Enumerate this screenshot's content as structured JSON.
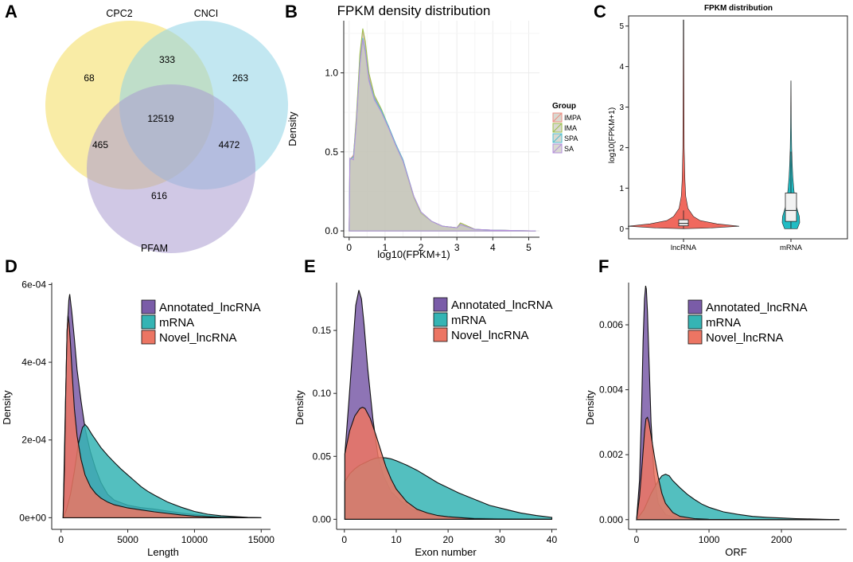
{
  "colors": {
    "yellow": "#f5df6b",
    "cyan": "#8fd3e6",
    "lavender": "#a99ad0",
    "purple": "#7a5ca8",
    "teal": "#35b4b4",
    "salmon": "#ec7563",
    "violin_red": "#f0695e",
    "violin_teal": "#22bcc4",
    "grid": "#ececec"
  },
  "chart_data": [
    {
      "panel": "A",
      "type": "venn",
      "sets": [
        "CPC2",
        "CNCI",
        "PFAM"
      ],
      "regions": [
        {
          "region": "CPC2 only",
          "value": "68"
        },
        {
          "region": "CPC2 & CNCI",
          "value": "333"
        },
        {
          "region": "CNCI only",
          "value": "263"
        },
        {
          "region": "all three",
          "value": "12519"
        },
        {
          "region": "CPC2 & PFAM",
          "value": "465"
        },
        {
          "region": "CNCI & PFAM",
          "value": "4472"
        },
        {
          "region": "PFAM only",
          "value": "616"
        }
      ]
    },
    {
      "panel": "B",
      "type": "area",
      "title": "FPKM density distribution",
      "xlabel": "log10(FPKM+1)",
      "ylabel": "Density",
      "xlim": [
        -0.15,
        5.3
      ],
      "ylim": [
        -0.04,
        1.33
      ],
      "xticks": [
        0,
        1,
        2,
        3,
        4,
        5
      ],
      "yticks": [
        0.0,
        0.5,
        1.0
      ],
      "ytick_labels": [
        "0.0",
        "0.5",
        "1.0"
      ],
      "legend_title": "Group",
      "series": [
        {
          "name": "IMPA",
          "color": "#ee8b80",
          "x": [
            0,
            0.02,
            0.12,
            0.2,
            0.3,
            0.38,
            0.45,
            0.55,
            0.7,
            0.9,
            1.1,
            1.3,
            1.5,
            1.8,
            2.0,
            2.3,
            2.6,
            3.0,
            3.1,
            3.5,
            4.0,
            5.2
          ],
          "y": [
            0,
            0.45,
            0.48,
            0.7,
            1.1,
            1.27,
            1.18,
            0.98,
            0.85,
            0.76,
            0.66,
            0.55,
            0.45,
            0.22,
            0.12,
            0.06,
            0.03,
            0.02,
            0.05,
            0.01,
            0.005,
            0
          ]
        },
        {
          "name": "IMA",
          "color": "#9cbf4a",
          "x": [
            0,
            0.02,
            0.12,
            0.2,
            0.3,
            0.38,
            0.45,
            0.55,
            0.7,
            0.9,
            1.1,
            1.3,
            1.5,
            1.8,
            2.0,
            2.3,
            2.6,
            3.0,
            3.1,
            3.5,
            4.0,
            5.2
          ],
          "y": [
            0,
            0.45,
            0.47,
            0.72,
            1.12,
            1.28,
            1.2,
            1.0,
            0.86,
            0.77,
            0.66,
            0.54,
            0.44,
            0.21,
            0.11,
            0.06,
            0.03,
            0.02,
            0.05,
            0.01,
            0.005,
            0
          ]
        },
        {
          "name": "SPA",
          "color": "#4fbfd0",
          "x": [
            0,
            0.02,
            0.12,
            0.2,
            0.3,
            0.38,
            0.45,
            0.55,
            0.7,
            0.9,
            1.1,
            1.3,
            1.5,
            1.8,
            2.0,
            2.3,
            2.6,
            3.0,
            3.1,
            3.5,
            4.0,
            5.2
          ],
          "y": [
            0,
            0.45,
            0.47,
            0.68,
            1.06,
            1.22,
            1.14,
            0.96,
            0.84,
            0.76,
            0.66,
            0.55,
            0.45,
            0.22,
            0.12,
            0.06,
            0.03,
            0.02,
            0.04,
            0.01,
            0.005,
            0
          ]
        },
        {
          "name": "SA",
          "color": "#b58fdc",
          "x": [
            0,
            0.02,
            0.12,
            0.2,
            0.3,
            0.38,
            0.45,
            0.55,
            0.7,
            0.9,
            1.1,
            1.3,
            1.5,
            1.8,
            2.0,
            2.3,
            2.6,
            3.0,
            3.1,
            3.5,
            4.0,
            5.2
          ],
          "y": [
            0,
            0.46,
            0.45,
            0.68,
            1.05,
            1.21,
            1.13,
            0.95,
            0.83,
            0.75,
            0.65,
            0.54,
            0.44,
            0.22,
            0.12,
            0.06,
            0.03,
            0.02,
            0.04,
            0.01,
            0.005,
            0
          ]
        }
      ]
    },
    {
      "panel": "C",
      "type": "violin",
      "title": "FPKM distribution",
      "ylabel": "log10(FPKM+1)",
      "categories": [
        "lncRNA",
        "mRNA"
      ],
      "ylim": [
        -0.25,
        5.25
      ],
      "yticks": [
        0,
        1,
        2,
        3,
        4,
        5
      ],
      "violins": [
        {
          "name": "lncRNA",
          "max": 5.15,
          "profile": [
            [
              0.0,
              0.0
            ],
            [
              0.02,
              0.5
            ],
            [
              0.06,
              1.0
            ],
            [
              0.12,
              0.6
            ],
            [
              0.2,
              0.3
            ],
            [
              0.3,
              0.18
            ],
            [
              0.5,
              0.08
            ],
            [
              0.8,
              0.04
            ],
            [
              1.2,
              0.025
            ],
            [
              2.0,
              0.012
            ],
            [
              3.0,
              0.008
            ],
            [
              5.15,
              0.004
            ]
          ],
          "box": {
            "q1": 0.07,
            "median": 0.13,
            "q3": 0.22,
            "whisker_low": 0.0,
            "whisker_high": 0.45
          }
        },
        {
          "name": "mRNA",
          "max": 3.65,
          "profile": [
            [
              0.0,
              0.35
            ],
            [
              0.15,
              0.48
            ],
            [
              0.3,
              0.46
            ],
            [
              0.45,
              0.36
            ],
            [
              0.6,
              0.26
            ],
            [
              0.8,
              0.2
            ],
            [
              1.0,
              0.15
            ],
            [
              1.3,
              0.1
            ],
            [
              1.6,
              0.07
            ],
            [
              2.0,
              0.04
            ],
            [
              2.5,
              0.02
            ],
            [
              3.0,
              0.012
            ],
            [
              3.65,
              0.006
            ]
          ],
          "box": {
            "q1": 0.18,
            "median": 0.45,
            "q3": 0.88,
            "whisker_low": 0.0,
            "whisker_high": 1.9
          }
        }
      ]
    },
    {
      "panel": "D",
      "type": "area",
      "xlabel": "Length",
      "ylabel": "Density",
      "xlim": [
        -700,
        15700
      ],
      "ylim": [
        -3e-05,
        0.000605
      ],
      "xticks": [
        0,
        5000,
        10000,
        15000
      ],
      "yticks": [
        0,
        0.0002,
        0.0004,
        0.0006
      ],
      "ytick_labels": [
        "0e+00",
        "2e-04",
        "4e-04",
        "6e-04"
      ],
      "series": [
        {
          "name": "Annotated_lncRNA",
          "color": "#7a5ca8",
          "x": [
            150,
            300,
            450,
            580,
            650,
            800,
            1000,
            1200,
            1500,
            1800,
            2200,
            2600,
            3000,
            3500,
            4000,
            5000,
            6000,
            7000,
            8000,
            9000,
            10000,
            11000,
            12000,
            13000,
            15000
          ],
          "y": [
            0,
            0.00025,
            0.00048,
            0.00056,
            0.000575,
            0.00053,
            0.00046,
            0.00038,
            0.0003,
            0.00023,
            0.00017,
            0.000125,
            9e-05,
            6e-05,
            4.5e-05,
            3.2e-05,
            2.6e-05,
            2.2e-05,
            1.7e-05,
            1.2e-05,
            8e-06,
            4e-06,
            2e-06,
            1e-06,
            0
          ]
        },
        {
          "name": "mRNA",
          "color": "#35b4b4",
          "x": [
            150,
            400,
            700,
            1000,
            1300,
            1600,
            1800,
            2000,
            2300,
            2600,
            3000,
            3500,
            4000,
            4500,
            5000,
            5500,
            6000,
            6500,
            7000,
            8000,
            9000,
            10000,
            11000,
            12000,
            13000,
            14000,
            15000
          ],
          "y": [
            0,
            2e-05,
            6e-05,
            0.00012,
            0.00019,
            0.000232,
            0.00024,
            0.000232,
            0.000215,
            0.0002,
            0.00018,
            0.00016,
            0.000142,
            0.000125,
            0.00011,
            9.5e-05,
            8e-05,
            6.8e-05,
            5.8e-05,
            4e-05,
            2.7e-05,
            1.6e-05,
            9e-06,
            5e-06,
            3e-06,
            1e-06,
            0
          ]
        },
        {
          "name": "Novel_lncRNA",
          "color": "#ec7563",
          "x": [
            150,
            250,
            350,
            450,
            520,
            600,
            700,
            850,
            1000,
            1200,
            1500,
            1800,
            2200,
            2600,
            3000,
            3500,
            4000,
            5000,
            6000,
            7000,
            8000,
            9000,
            10000,
            12000,
            15000
          ],
          "y": [
            0,
            0.00012,
            0.00032,
            0.00048,
            0.00052,
            0.0005,
            0.00045,
            0.00036,
            0.00028,
            0.00021,
            0.00015,
            0.00011,
            8e-05,
            6.2e-05,
            5e-05,
            4e-05,
            3.3e-05,
            2.5e-05,
            2e-05,
            1.5e-05,
            1.1e-05,
            7e-06,
            4e-06,
            1e-06,
            0
          ]
        }
      ]
    },
    {
      "panel": "E",
      "type": "area",
      "xlabel": "Exon number",
      "ylabel": "Density",
      "xlim": [
        -1.5,
        41
      ],
      "ylim": [
        -0.008,
        0.188
      ],
      "xticks": [
        0,
        10,
        20,
        30,
        40
      ],
      "yticks": [
        0,
        0.05,
        0.1,
        0.15
      ],
      "ytick_labels": [
        "0.00",
        "0.05",
        "0.10",
        "0.15"
      ],
      "series": [
        {
          "name": "Annotated_lncRNA",
          "color": "#7a5ca8",
          "x": [
            0.1,
            0.8,
            1.5,
            2.2,
            2.8,
            3.3,
            3.8,
            4.5,
            5.5,
            6.5,
            7.5,
            9,
            11,
            13,
            16,
            20,
            25,
            30,
            40
          ],
          "y": [
            0.052,
            0.09,
            0.13,
            0.17,
            0.182,
            0.175,
            0.155,
            0.12,
            0.08,
            0.05,
            0.035,
            0.022,
            0.014,
            0.008,
            0.004,
            0.002,
            0.001,
            0.0005,
            0
          ]
        },
        {
          "name": "mRNA",
          "color": "#35b4b4",
          "x": [
            0.1,
            1,
            2,
            3,
            4,
            5,
            6,
            7,
            8,
            9,
            10,
            12,
            14,
            16,
            18,
            20,
            22,
            25,
            28,
            31,
            34,
            37,
            40
          ],
          "y": [
            0.03,
            0.036,
            0.04,
            0.043,
            0.045,
            0.047,
            0.0485,
            0.049,
            0.0488,
            0.048,
            0.0465,
            0.043,
            0.039,
            0.034,
            0.029,
            0.025,
            0.021,
            0.016,
            0.011,
            0.008,
            0.005,
            0.003,
            0.0015
          ]
        },
        {
          "name": "Novel_lncRNA",
          "color": "#ec7563",
          "x": [
            0.1,
            1,
            2,
            3,
            3.5,
            4,
            5,
            6,
            7,
            8,
            9,
            10,
            12,
            14,
            16,
            18,
            20,
            25,
            30,
            40
          ],
          "y": [
            0.052,
            0.07,
            0.082,
            0.088,
            0.089,
            0.088,
            0.08,
            0.068,
            0.055,
            0.042,
            0.032,
            0.024,
            0.014,
            0.008,
            0.005,
            0.003,
            0.002,
            0.0005,
            0.0001,
            0
          ]
        }
      ]
    },
    {
      "panel": "F",
      "type": "area",
      "xlabel": "ORF",
      "ylabel": "Density",
      "xlim": [
        -110,
        2900
      ],
      "ylim": [
        -0.0003,
        0.0073
      ],
      "xticks": [
        0,
        1000,
        2000
      ],
      "yticks": [
        0,
        0.002,
        0.004,
        0.006
      ],
      "ytick_labels": [
        "0.000",
        "0.002",
        "0.004",
        "0.006"
      ],
      "series": [
        {
          "name": "Annotated_lncRNA",
          "color": "#7a5ca8",
          "x": [
            0,
            40,
            70,
            90,
            110,
            125,
            135,
            150,
            170,
            200,
            240,
            300,
            400,
            600,
            800,
            1000,
            1500,
            2800
          ],
          "y": [
            0,
            0.0012,
            0.0035,
            0.0055,
            0.0068,
            0.0072,
            0.0071,
            0.0064,
            0.005,
            0.003,
            0.0014,
            0.0005,
            0.00015,
            4e-05,
            1e-05,
            5e-06,
            0,
            0
          ]
        },
        {
          "name": "mRNA",
          "color": "#35b4b4",
          "x": [
            0,
            100,
            200,
            300,
            350,
            400,
            450,
            500,
            600,
            700,
            800,
            900,
            1000,
            1200,
            1400,
            1600,
            1800,
            2000,
            2200,
            2400,
            2600,
            2800
          ],
          "y": [
            0,
            0.0003,
            0.0008,
            0.0012,
            0.00135,
            0.0014,
            0.00135,
            0.0012,
            0.00098,
            0.00078,
            0.00062,
            0.00048,
            0.00038,
            0.00024,
            0.00016,
            0.0001,
            7e-05,
            5e-05,
            3e-05,
            2e-05,
            1e-05,
            0
          ]
        },
        {
          "name": "Novel_lncRNA",
          "color": "#ec7563",
          "x": [
            0,
            40,
            80,
            110,
            130,
            150,
            170,
            200,
            250,
            300,
            350,
            400,
            500,
            600,
            800,
            1000,
            1500,
            2800
          ],
          "y": [
            0,
            0.0007,
            0.0018,
            0.0027,
            0.0031,
            0.00315,
            0.003,
            0.0026,
            0.0019,
            0.0013,
            0.0008,
            0.0005,
            0.00022,
            0.0001,
            3e-05,
            1e-05,
            0,
            0
          ]
        }
      ]
    }
  ]
}
